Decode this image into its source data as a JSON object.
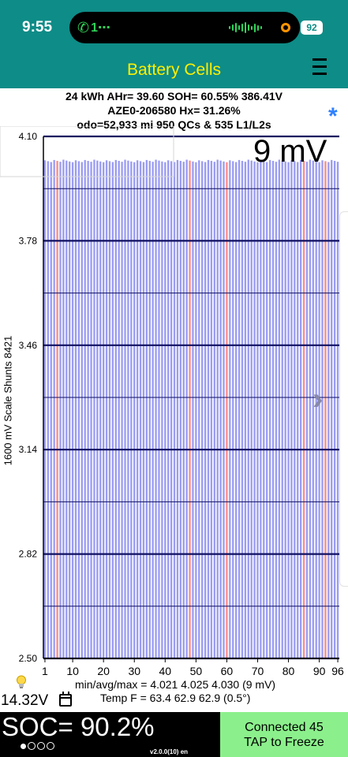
{
  "status": {
    "time": "9:55",
    "call": "1⋯",
    "battery": "92"
  },
  "nav": {
    "title": "Battery Cells",
    "menu_icon": "hamburger-icon"
  },
  "info": {
    "line1": "24 kWh  AHr= 39.60  SOH= 60.55%   386.41V",
    "line2": "AZE0-206580   Hx= 31.26%",
    "line3": "odo=52,933 mi 950 QCs & 535 L1/L2s",
    "asterisk": "*"
  },
  "chart_data": {
    "type": "bar",
    "ylabel": "1600 mV Scale   Shunts 8421",
    "ylim": [
      2.5,
      4.1
    ],
    "yticks": [
      "4.10",
      "3.78",
      "3.46",
      "3.14",
      "2.82",
      "2.50"
    ],
    "xticks": [
      "1",
      "10",
      "20",
      "30",
      "40",
      "50",
      "60",
      "70",
      "80",
      "90",
      "96"
    ],
    "xtick_values": [
      1,
      10,
      20,
      30,
      40,
      50,
      60,
      70,
      80,
      90,
      96
    ],
    "cell_count": 96,
    "delta_label": "9 mV",
    "min_mv": 4.021,
    "avg_mv": 4.025,
    "max_mv": 4.03,
    "highlight_cells": [
      5,
      48,
      60,
      85,
      92
    ],
    "colors": {
      "bar": "#9a9cf2",
      "highlight": "#ff8a8a",
      "grid": "#101060"
    }
  },
  "footer": {
    "stats": "min/avg/max = 4.021 4.025 4.030  (9 mV)",
    "temps": "Temp F = 63.4  62.9  62.9  (0.5°)",
    "voltage": "14.32V",
    "soc": "SOC= 90.2%",
    "version": "v2.0.0(10) en",
    "connect_line1": "Connected 45",
    "connect_line2": "TAP to Freeze"
  }
}
